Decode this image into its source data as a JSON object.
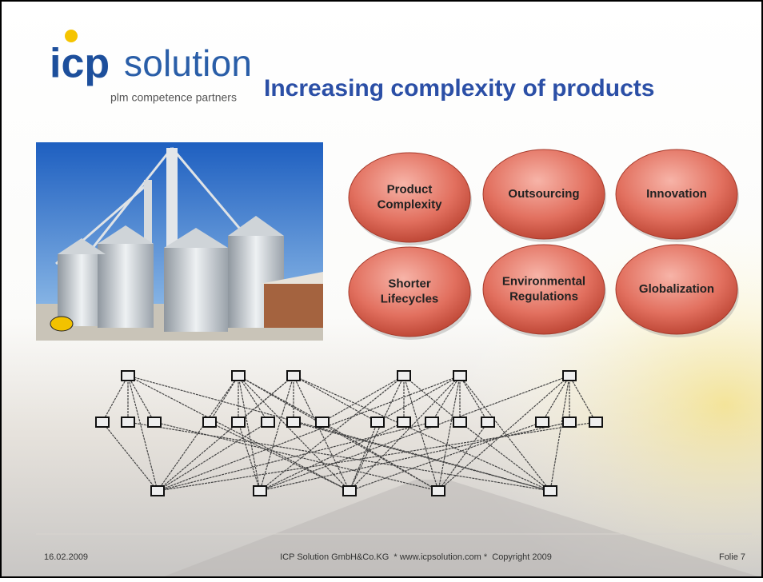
{
  "header": {
    "logo_main": "icp",
    "logo_sub": "solution",
    "tagline": "plm competence partners",
    "title": "Increasing complexity of products"
  },
  "ovals": [
    {
      "lines": [
        "Product",
        "Complexity"
      ]
    },
    {
      "lines": [
        "Outsourcing"
      ]
    },
    {
      "lines": [
        "Innovation"
      ]
    },
    {
      "lines": [
        "Shorter",
        "Lifecycles"
      ]
    },
    {
      "lines": [
        "Environmental",
        "Regulations"
      ]
    },
    {
      "lines": [
        "Globalization"
      ]
    }
  ],
  "footer": {
    "date": "16.02.2009",
    "center": "ICP Solution GmbH&Co.KG  * www.icpsolution.com *  Copyright 2009",
    "page": "Folie 7"
  }
}
